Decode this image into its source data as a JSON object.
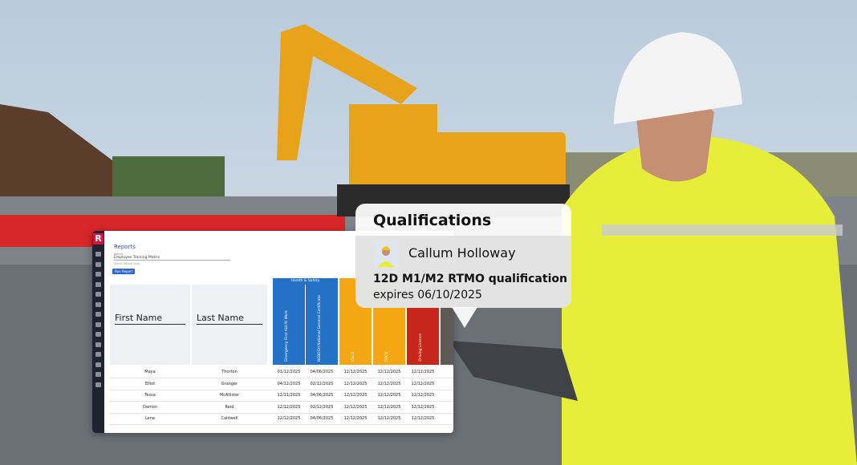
{
  "app": {
    "logo": "R",
    "title": "Reports",
    "report_label": "Report",
    "report_value": "Employee Training Matrix",
    "report_hint": "Select Report type",
    "run_button": "Run Report",
    "group": "Health & Safety",
    "columns": [
      "First Name",
      "Last Name",
      "Emergency First Aid At Work",
      "NEBOSH National General Certificate",
      "CSCS",
      "CPCS",
      "Driving Licence"
    ],
    "rows": [
      [
        "Maya",
        "Thorton",
        "01/12/2025",
        "04/06/2025",
        "12/12/2025",
        "12/12/2025",
        "12/12/2025"
      ],
      [
        "Elliot",
        "Granger",
        "04/12/2025",
        "02/12/2025",
        "12/12/2025",
        "12/12/2025",
        "12/12/2025"
      ],
      [
        "Tessa",
        "McAllister",
        "12/11/2025",
        "04/06/2025",
        "12/12/2025",
        "12/12/2025",
        "12/12/2025"
      ],
      [
        "Damon",
        "Reid",
        "12/12/2025",
        "02/12/2025",
        "12/12/2025",
        "12/12/2025",
        "12/12/2025"
      ],
      [
        "Lena",
        "Caldwell",
        "12/12/2025",
        "04/06/2025",
        "12/12/2025",
        "12/12/2025",
        "12/12/2025"
      ]
    ]
  },
  "popup": {
    "title": "Qualifications",
    "name": "Callum Holloway",
    "qualification": "12D M1/M2 RTMO qualification",
    "expiry": "expires 06/10/2025"
  }
}
